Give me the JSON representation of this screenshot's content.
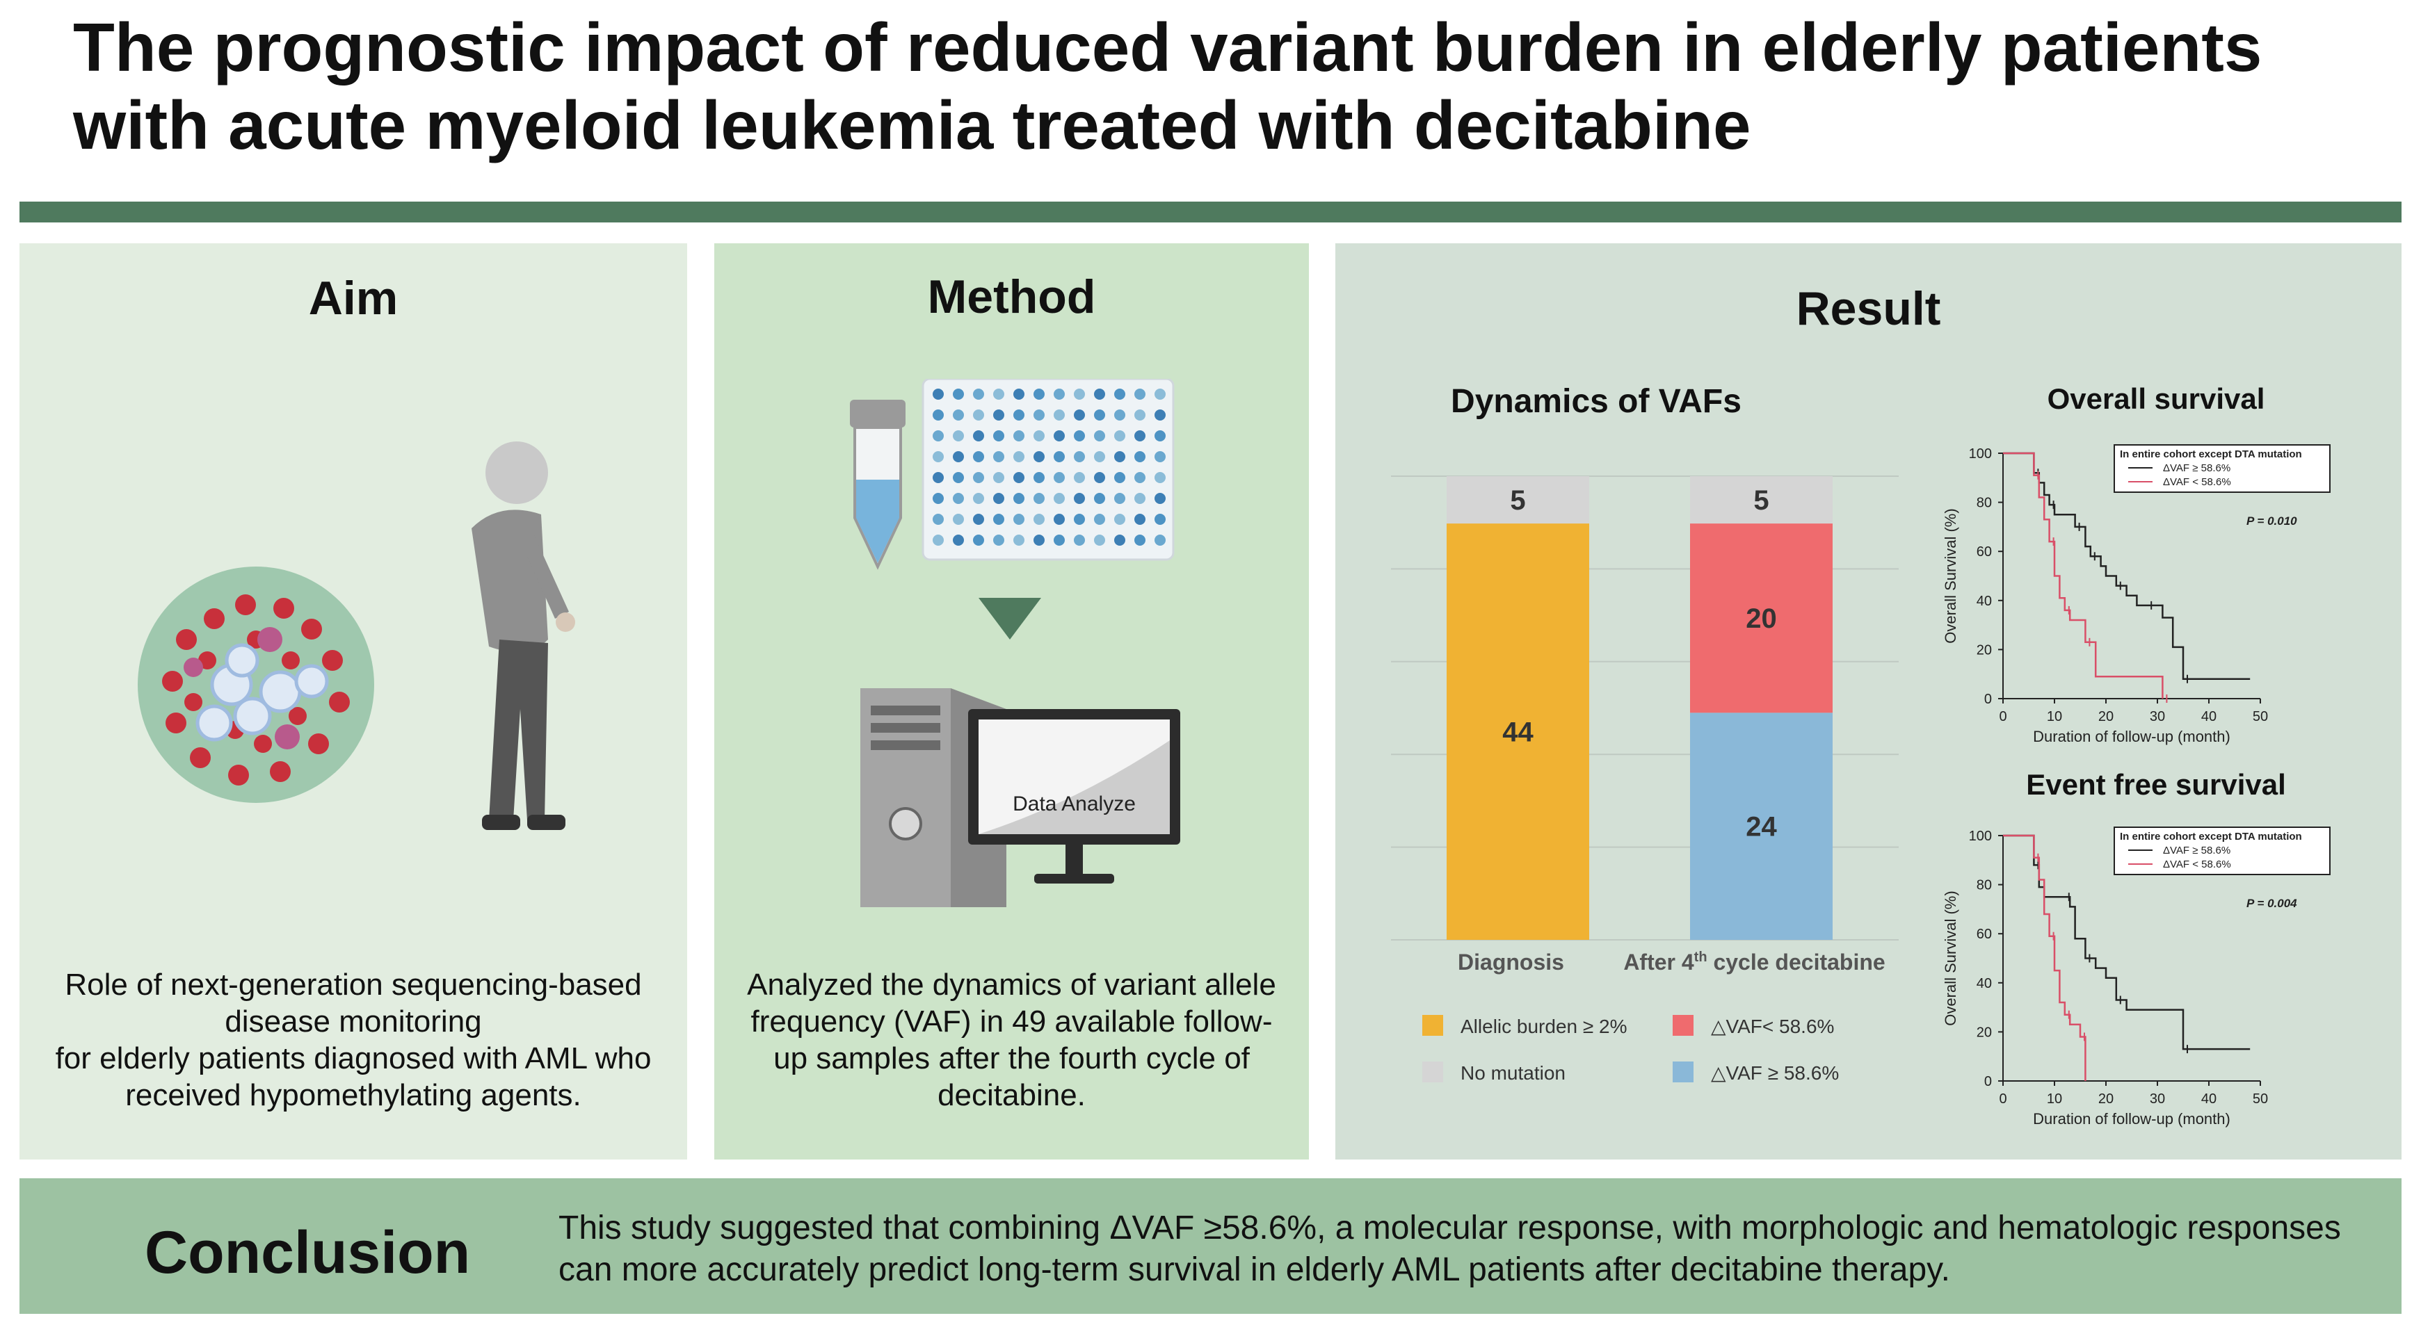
{
  "title": "The prognostic impact of reduced variant burden in elderly patients with acute myeloid leukemia treated with decitabine",
  "aim": {
    "heading": "Aim",
    "text": "Role of next-generation sequencing-based disease monitoring\nfor elderly patients diagnosed with AML who received hypomethylating agents."
  },
  "method": {
    "heading": "Method",
    "screen_label": "Data Analyze",
    "text": "Analyzed the dynamics of variant allele frequency (VAF) in 49 available follow-up samples after the fourth cycle of decitabine."
  },
  "result": {
    "heading": "Result",
    "bar_title": "Dynamics of VAFs",
    "os_title": "Overall survival",
    "efs_title": "Event free survival"
  },
  "conclusion": {
    "heading": "Conclusion",
    "text": "This study suggested that combining ΔVAF ≥58.6%, a molecular response, with morphologic and hematologic responses can more accurately predict long-term survival in elderly AML patients after decitabine therapy."
  },
  "colors": {
    "accent_green": "#4f7a5e",
    "orange": "#f0b233",
    "red": "#ef6b6e",
    "blue": "#8ab8d8",
    "gray": "#d5d5d5"
  },
  "chart_data": [
    {
      "type": "bar",
      "stacked": true,
      "title": "Dynamics of VAFs",
      "categories": [
        "Diagnosis",
        "After 4th cycle decitabine"
      ],
      "series": [
        {
          "name": "Allelic burden ≥ 2%",
          "color": "#f0b233",
          "values": [
            44,
            0
          ]
        },
        {
          "name": "△VAF ≥ 58.6%",
          "color": "#8ab8d8",
          "values": [
            0,
            24
          ]
        },
        {
          "name": "△VAF< 58.6%",
          "color": "#ef6b6e",
          "values": [
            0,
            20
          ]
        },
        {
          "name": "No mutation",
          "color": "#d5d5d5",
          "values": [
            5,
            5
          ]
        }
      ],
      "legend": [
        "Allelic burden ≥ 2%",
        "△VAF< 58.6%",
        "No mutation",
        "△VAF ≥ 58.6%"
      ],
      "legend_position": "bottom",
      "grid": true
    },
    {
      "type": "line",
      "step": true,
      "title": "Overall survival",
      "xlabel": "Duration of follow-up (month)",
      "ylabel": "Overall Survival (%)",
      "xlim": [
        0,
        50
      ],
      "ylim": [
        0,
        100
      ],
      "xticks": [
        "0",
        "10",
        "20",
        "30",
        "40",
        "50"
      ],
      "yticks": [
        "0",
        "20",
        "40",
        "60",
        "80",
        "100"
      ],
      "legend_title": "In entire cohort except DTA mutation",
      "annotation": "P = 0.010",
      "series": [
        {
          "name": "ΔVAF ≥ 58.6%",
          "color": "#222222",
          "x": [
            0,
            5,
            6,
            7,
            8,
            9,
            10,
            12,
            14,
            15,
            16,
            17,
            19,
            20,
            22,
            24,
            26,
            28,
            31,
            33,
            35,
            48
          ],
          "y": [
            100,
            100,
            92,
            88,
            83,
            79,
            75,
            75,
            70,
            70,
            62,
            58,
            54,
            50,
            46,
            42,
            38,
            38,
            33,
            21,
            8,
            8
          ]
        },
        {
          "name": "ΔVAF < 58.6%",
          "color": "#d94f68",
          "x": [
            0,
            5,
            6,
            7,
            8,
            9,
            10,
            11,
            12,
            13,
            15,
            16,
            18,
            30,
            31
          ],
          "y": [
            100,
            100,
            91,
            82,
            73,
            64,
            50,
            41,
            36,
            32,
            32,
            23,
            9,
            9,
            0
          ]
        }
      ]
    },
    {
      "type": "line",
      "step": true,
      "title": "Event free survival",
      "xlabel": "Duration of follow-up (month)",
      "ylabel": "Overall Survival (%)",
      "xlim": [
        0,
        50
      ],
      "ylim": [
        0,
        100
      ],
      "xticks": [
        "0",
        "10",
        "20",
        "30",
        "40",
        "50"
      ],
      "yticks": [
        "0",
        "20",
        "40",
        "60",
        "80",
        "100"
      ],
      "legend_title": "In entire cohort except DTA mutation",
      "annotation": "P = 0.004",
      "series": [
        {
          "name": "ΔVAF ≥ 58.6%",
          "color": "#222222",
          "x": [
            0,
            5,
            6,
            7,
            8,
            12,
            13,
            14,
            16,
            18,
            20,
            22,
            24,
            26,
            35,
            48
          ],
          "y": [
            100,
            100,
            88,
            79,
            75,
            75,
            71,
            58,
            50,
            46,
            42,
            33,
            29,
            29,
            13,
            13
          ]
        },
        {
          "name": "ΔVAF < 58.6%",
          "color": "#d94f68",
          "x": [
            0,
            5,
            6,
            7,
            8,
            9,
            10,
            11,
            12,
            13,
            14,
            15,
            16
          ],
          "y": [
            100,
            100,
            91,
            82,
            68,
            59,
            45,
            32,
            27,
            23,
            23,
            18,
            0
          ]
        }
      ]
    }
  ]
}
